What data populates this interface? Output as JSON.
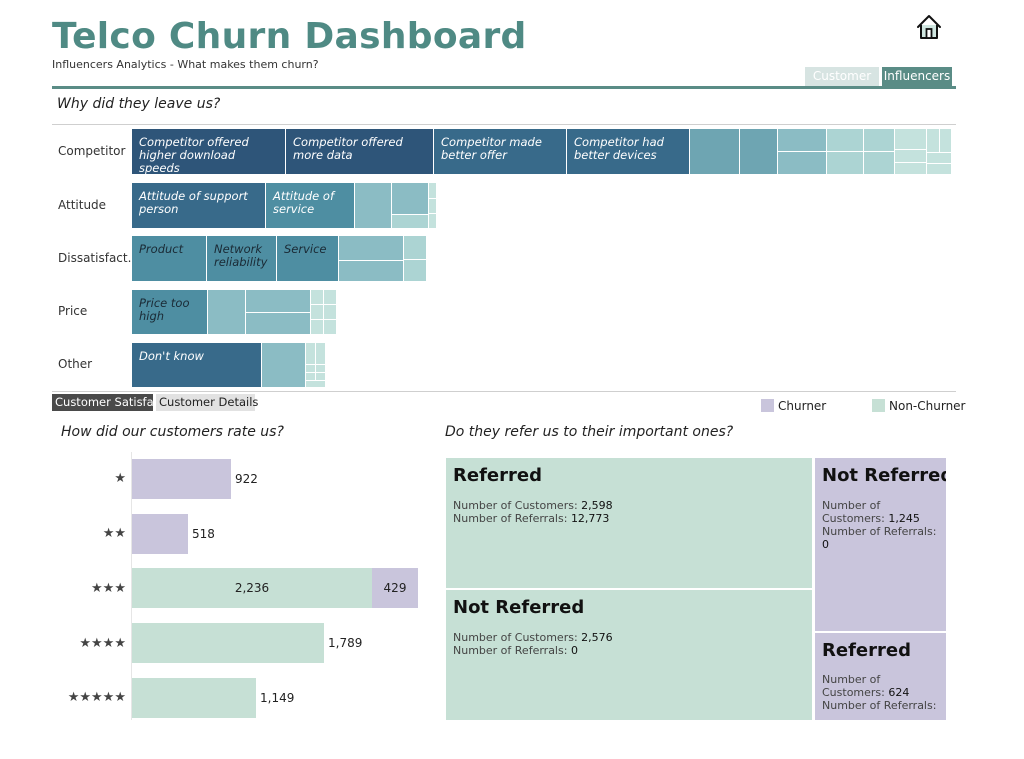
{
  "header": {
    "title": "Telco Churn Dashboard",
    "subtitle": "Influencers Analytics - What makes them churn?",
    "home_icon": "home-icon",
    "tabs": [
      {
        "label": "Customer",
        "active": false
      },
      {
        "label": "Influencers",
        "active": true
      }
    ]
  },
  "reasons": {
    "question": "Why did they leave us?",
    "categories": [
      "Competitor",
      "Attitude",
      "Dissatisfact..",
      "Price",
      "Other"
    ],
    "cells": {
      "competitor": [
        "Competitor offered higher download speeds",
        "Competitor offered more data",
        "Competitor made better offer",
        "Competitor had better devices"
      ],
      "attitude": [
        "Attitude of support person",
        "Attitude of service"
      ],
      "dissatisfaction": [
        "Product",
        "Network reliability",
        "Service"
      ],
      "price": [
        "Price too high"
      ],
      "other": [
        "Don't know"
      ]
    }
  },
  "subtabs": [
    {
      "label": "Customer Satisfa..",
      "active": true
    },
    {
      "label": "Customer Details",
      "active": false
    }
  ],
  "legend": [
    {
      "label": "Churner",
      "color": "#c9c5dc"
    },
    {
      "label": "Non-Churner",
      "color": "#c6e0d5"
    }
  ],
  "ratings": {
    "question": "How did our customers rate us?",
    "rows": [
      {
        "stars": "★",
        "churner": 922,
        "non_churner": null,
        "churner_label": "922",
        "non_churner_label": ""
      },
      {
        "stars": "★★",
        "churner": 518,
        "non_churner": null,
        "churner_label": "518",
        "non_churner_label": ""
      },
      {
        "stars": "★★★",
        "churner": 429,
        "non_churner": 2236,
        "churner_label": "429",
        "non_churner_label": "2,236"
      },
      {
        "stars": "★★★★",
        "churner": null,
        "non_churner": 1789,
        "churner_label": "",
        "non_churner_label": "1,789"
      },
      {
        "stars": "★★★★★",
        "churner": null,
        "non_churner": 1149,
        "churner_label": "",
        "non_churner_label": "1,149"
      }
    ]
  },
  "referrals": {
    "question": "Do they refer us to their important ones?",
    "customers_label": "Number of Customers:",
    "referrals_label": "Number of Referrals:",
    "customers_label_part1": "Number of",
    "customers_label_part2": "Customers:",
    "blocks": {
      "nc_referred": {
        "title": "Referred",
        "customers": "2,598",
        "referrals": "12,773"
      },
      "nc_not_referred": {
        "title": "Not Referred",
        "customers": "2,576",
        "referrals": "0"
      },
      "ch_not_referred": {
        "title": "Not Referred",
        "customers": "1,245",
        "referrals": "0"
      },
      "ch_referred": {
        "title": "Referred",
        "customers": "624",
        "referrals": ""
      }
    }
  }
}
